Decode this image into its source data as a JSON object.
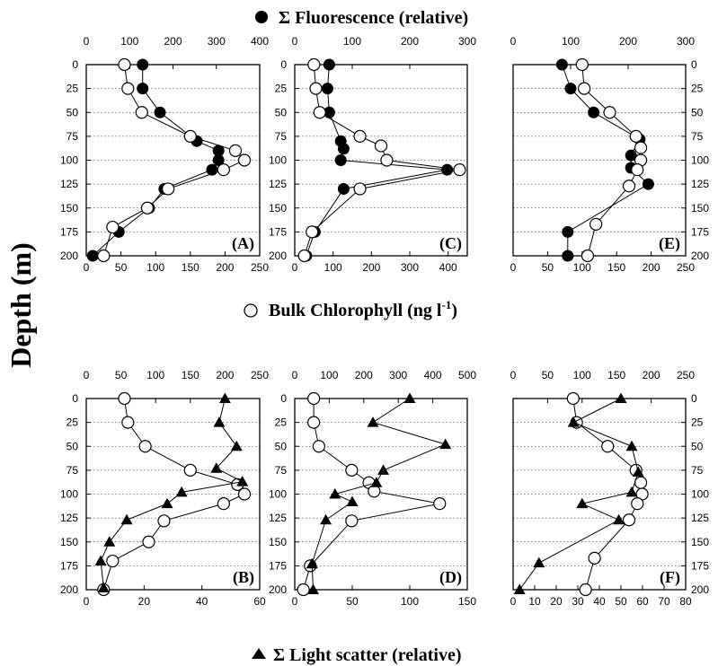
{
  "figure": {
    "y_axis_label": "Depth (m)",
    "legend_fluorescence": "Σ Fluorescence (relative)",
    "legend_chlorophyll_prefix": "Bulk Chlorophyll (ng l",
    "legend_chlorophyll_exp": "-1",
    "legend_chlorophyll_suffix": ")",
    "legend_scatter": "Σ Light scatter (relative)",
    "colors": {
      "foreground": "#000000",
      "open_marker_fill": "#ffffff",
      "background": "#ffffff"
    },
    "marker_icons": {
      "fluorescence": "filled-circle-icon",
      "chlorophyll": "open-circle-icon",
      "scatter": "filled-triangle-icon"
    }
  },
  "chart_data": [
    {
      "type": "line",
      "panel": "(A)",
      "ylabel": "Depth (m)",
      "ylim": [
        0,
        200
      ],
      "y_inverted": true,
      "y_ticks": [
        0,
        25,
        50,
        75,
        100,
        125,
        150,
        175,
        200
      ],
      "grid": "horizontal dotted",
      "bottom_axis": {
        "min": 0,
        "max": 250,
        "ticks": [
          0,
          50,
          100,
          150,
          200,
          250
        ]
      },
      "top_axis": {
        "min": 0,
        "max": 400,
        "ticks": [
          0,
          100,
          200,
          300,
          400
        ]
      },
      "series": [
        {
          "name": "Σ Fluorescence (relative)",
          "marker": "filled-circle",
          "axis": "top",
          "points": [
            [
              130,
              0
            ],
            [
              130,
              25
            ],
            [
              170,
              50
            ],
            [
              255,
              80
            ],
            [
              305,
              90
            ],
            [
              305,
              100
            ],
            [
              290,
              110
            ],
            [
              180,
              130
            ],
            [
              145,
              150
            ],
            [
              75,
              175
            ],
            [
              15,
              200
            ]
          ]
        },
        {
          "name": "Bulk Chlorophyll (ng l-1)",
          "marker": "open-circle",
          "axis": "bottom",
          "points": [
            [
              55,
              0
            ],
            [
              60,
              25
            ],
            [
              80,
              50
            ],
            [
              150,
              75
            ],
            [
              215,
              90
            ],
            [
              228,
              100
            ],
            [
              198,
              110
            ],
            [
              118,
              130
            ],
            [
              88,
              150
            ],
            [
              38,
              170
            ],
            [
              25,
              200
            ]
          ]
        }
      ]
    },
    {
      "type": "line",
      "panel": "(C)",
      "ylabel": "Depth (m)",
      "ylim": [
        0,
        200
      ],
      "y_inverted": true,
      "y_ticks": [
        0,
        25,
        50,
        75,
        100,
        125,
        150,
        175,
        200
      ],
      "grid": "horizontal dotted",
      "bottom_axis": {
        "min": 0,
        "max": 450,
        "ticks": [
          0,
          100,
          200,
          300,
          400
        ]
      },
      "top_axis": {
        "min": 0,
        "max": 300,
        "ticks": [
          0,
          100,
          200,
          300
        ]
      },
      "series": [
        {
          "name": "Σ Fluorescence (relative)",
          "marker": "filled-circle",
          "axis": "top",
          "points": [
            [
              60,
              0
            ],
            [
              57,
              25
            ],
            [
              60,
              50
            ],
            [
              80,
              80
            ],
            [
              85,
              88
            ],
            [
              80,
              100
            ],
            [
              265,
              110
            ],
            [
              85,
              130
            ],
            [
              35,
              175
            ],
            [
              20,
              200
            ]
          ]
        },
        {
          "name": "Bulk Chlorophyll (ng l-1)",
          "marker": "open-circle",
          "axis": "bottom",
          "points": [
            [
              50,
              0
            ],
            [
              55,
              25
            ],
            [
              65,
              50
            ],
            [
              170,
              75
            ],
            [
              225,
              85
            ],
            [
              240,
              100
            ],
            [
              430,
              110
            ],
            [
              170,
              130
            ],
            [
              45,
              175
            ],
            [
              25,
              200
            ]
          ]
        }
      ]
    },
    {
      "type": "line",
      "panel": "(E)",
      "ylabel": "Depth (m)",
      "ylim": [
        0,
        200
      ],
      "y_inverted": true,
      "y_ticks": [
        0,
        25,
        50,
        75,
        100,
        125,
        150,
        175,
        200
      ],
      "grid": "horizontal dotted",
      "bottom_axis": {
        "min": 0,
        "max": 250,
        "ticks": [
          0,
          50,
          100,
          150,
          200,
          250
        ]
      },
      "top_axis": {
        "min": 0,
        "max": 300,
        "ticks": [
          0,
          100,
          200,
          300
        ]
      },
      "series": [
        {
          "name": "Σ Fluorescence (relative)",
          "marker": "filled-circle",
          "axis": "top",
          "points": [
            [
              85,
              0
            ],
            [
              100,
              25
            ],
            [
              140,
              50
            ],
            [
              220,
              78
            ],
            [
              205,
              95
            ],
            [
              205,
              108
            ],
            [
              235,
              125
            ],
            [
              95,
              175
            ],
            [
              95,
              200
            ]
          ]
        },
        {
          "name": "Bulk Chlorophyll (ng l-1)",
          "marker": "open-circle",
          "axis": "bottom",
          "points": [
            [
              100,
              0
            ],
            [
              103,
              25
            ],
            [
              140,
              50
            ],
            [
              178,
              75
            ],
            [
              185,
              87
            ],
            [
              185,
              100
            ],
            [
              180,
              110
            ],
            [
              168,
              127
            ],
            [
              120,
              167
            ],
            [
              108,
              200
            ]
          ]
        }
      ]
    },
    {
      "type": "line",
      "panel": "(B)",
      "ylabel": "Depth (m)",
      "ylim": [
        0,
        200
      ],
      "y_inverted": true,
      "y_ticks": [
        0,
        25,
        50,
        75,
        100,
        125,
        150,
        175,
        200
      ],
      "grid": "horizontal dotted",
      "bottom_axis": {
        "min": 0,
        "max": 60,
        "ticks": [
          0,
          20,
          40,
          60
        ]
      },
      "top_axis": {
        "min": 0,
        "max": 250,
        "ticks": [
          0,
          50,
          100,
          150,
          200,
          250
        ]
      },
      "series": [
        {
          "name": "Bulk Chlorophyll (ng l-1)",
          "marker": "open-circle",
          "axis": "top",
          "points": [
            [
              55,
              0
            ],
            [
              60,
              25
            ],
            [
              85,
              50
            ],
            [
              150,
              75
            ],
            [
              218,
              90
            ],
            [
              228,
              100
            ],
            [
              198,
              110
            ],
            [
              112,
              128
            ],
            [
              90,
              150
            ],
            [
              38,
              170
            ],
            [
              25,
              200
            ]
          ]
        },
        {
          "name": "Σ Light scatter (relative)",
          "marker": "filled-triangle",
          "axis": "bottom",
          "points": [
            [
              48,
              0
            ],
            [
              46,
              25
            ],
            [
              52,
              50
            ],
            [
              45,
              73
            ],
            [
              54,
              87
            ],
            [
              33,
              98
            ],
            [
              28,
              110
            ],
            [
              14,
              127
            ],
            [
              8,
              150
            ],
            [
              5,
              170
            ],
            [
              6,
              198
            ]
          ]
        }
      ]
    },
    {
      "type": "line",
      "panel": "(D)",
      "ylabel": "Depth (m)",
      "ylim": [
        0,
        200
      ],
      "y_inverted": true,
      "y_ticks": [
        0,
        25,
        50,
        75,
        100,
        125,
        150,
        175,
        200
      ],
      "grid": "horizontal dotted",
      "bottom_axis": {
        "min": 0,
        "max": 150,
        "ticks": [
          0,
          50,
          100,
          150
        ]
      },
      "top_axis": {
        "min": 0,
        "max": 500,
        "ticks": [
          0,
          100,
          200,
          300,
          400,
          500
        ]
      },
      "series": [
        {
          "name": "Bulk Chlorophyll (ng l-1)",
          "marker": "open-circle",
          "axis": "top",
          "points": [
            [
              55,
              0
            ],
            [
              55,
              25
            ],
            [
              70,
              50
            ],
            [
              165,
              75
            ],
            [
              215,
              88
            ],
            [
              230,
              97
            ],
            [
              420,
              110
            ],
            [
              165,
              128
            ],
            [
              45,
              175
            ],
            [
              25,
              200
            ]
          ]
        },
        {
          "name": "Σ Light scatter (relative)",
          "marker": "filled-triangle",
          "axis": "bottom",
          "points": [
            [
              100,
              0
            ],
            [
              68,
              25
            ],
            [
              131,
              48
            ],
            [
              77,
              75
            ],
            [
              71,
              88
            ],
            [
              35,
              100
            ],
            [
              50,
              108
            ],
            [
              27,
              127
            ],
            [
              15,
              173
            ],
            [
              16,
              200
            ]
          ]
        }
      ]
    },
    {
      "type": "line",
      "panel": "(F)",
      "ylabel": "Depth (m)",
      "ylim": [
        0,
        200
      ],
      "y_inverted": true,
      "y_ticks": [
        0,
        25,
        50,
        75,
        100,
        125,
        150,
        175,
        200
      ],
      "grid": "horizontal dotted",
      "bottom_axis": {
        "min": 0,
        "max": 80,
        "ticks": [
          0,
          10,
          20,
          30,
          40,
          50,
          60,
          70,
          80
        ]
      },
      "top_axis": {
        "min": 0,
        "max": 250,
        "ticks": [
          0,
          50,
          100,
          150,
          200,
          250
        ]
      },
      "series": [
        {
          "name": "Bulk Chlorophyll (ng l-1)",
          "marker": "open-circle",
          "axis": "top",
          "points": [
            [
              87,
              0
            ],
            [
              92,
              25
            ],
            [
              137,
              50
            ],
            [
              178,
              75
            ],
            [
              185,
              88
            ],
            [
              187,
              100
            ],
            [
              180,
              110
            ],
            [
              168,
              127
            ],
            [
              118,
              167
            ],
            [
              105,
              200
            ]
          ]
        },
        {
          "name": "Σ Light scatter (relative)",
          "marker": "filled-triangle",
          "axis": "bottom",
          "points": [
            [
              50,
              0
            ],
            [
              28,
              25
            ],
            [
              55,
              50
            ],
            [
              58,
              77
            ],
            [
              55,
              98
            ],
            [
              32,
              110
            ],
            [
              49,
              127
            ],
            [
              12,
              172
            ],
            [
              3,
              200
            ]
          ]
        }
      ]
    }
  ]
}
